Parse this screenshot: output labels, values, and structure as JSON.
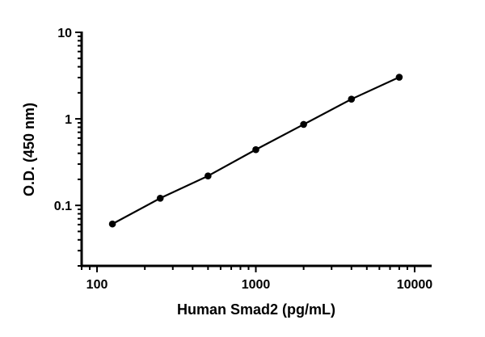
{
  "chart_data": {
    "type": "line",
    "title": "",
    "xlabel": "Human Smad2 (pg/mL)",
    "ylabel": "O.D. (450 nm)",
    "x_scale": "log",
    "y_scale": "log",
    "xlim": [
      80,
      12800
    ],
    "ylim": [
      0.02,
      10
    ],
    "x_ticks": [
      100,
      1000,
      10000
    ],
    "x_tick_labels": [
      "100",
      "1000",
      "10000"
    ],
    "y_ticks": [
      0.1,
      1,
      10
    ],
    "y_tick_labels": [
      "0.1",
      "1",
      "10"
    ],
    "grid": false,
    "markers": true,
    "color": "#000000",
    "series": [
      {
        "x": [
          125,
          250,
          500,
          1000,
          2000,
          4000,
          8000
        ],
        "y": [
          0.061,
          0.121,
          0.219,
          0.441,
          0.863,
          1.69,
          3.03
        ]
      }
    ]
  }
}
